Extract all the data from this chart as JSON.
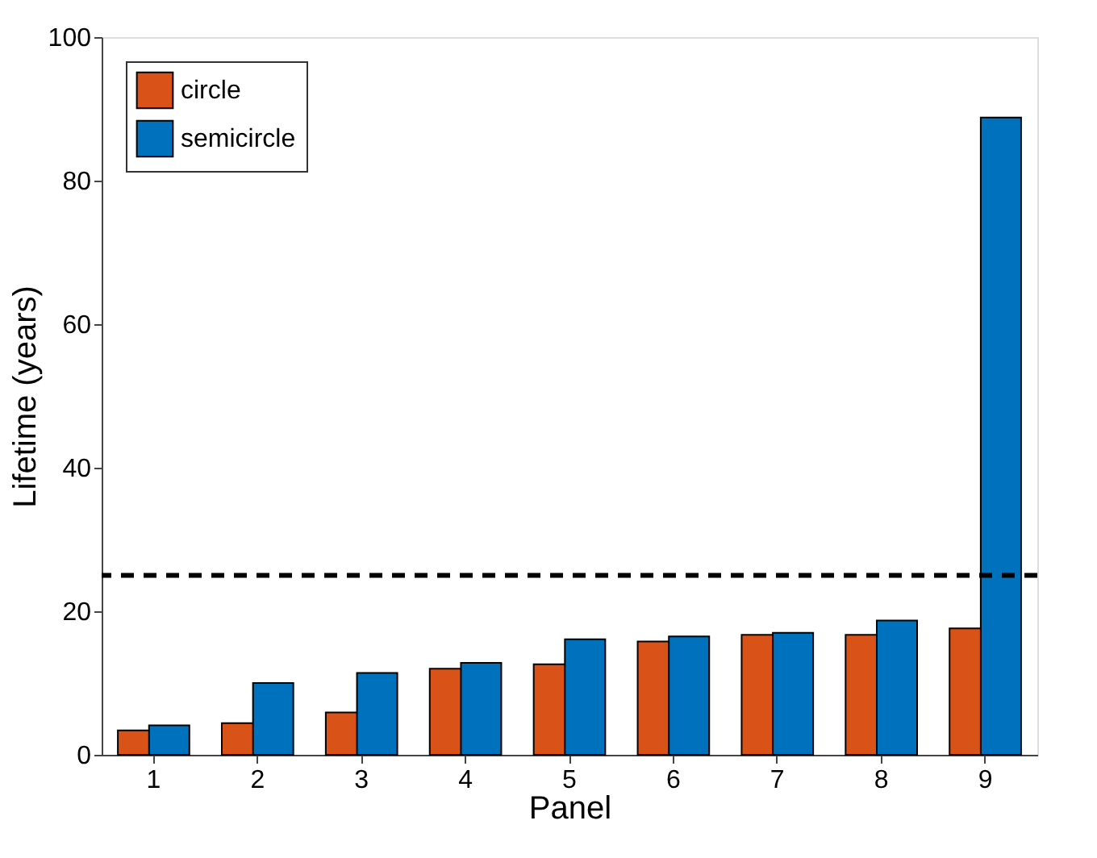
{
  "chart_data": {
    "type": "bar",
    "xlabel": "Panel",
    "ylabel": "Lifetime (years)",
    "categories": [
      "1",
      "2",
      "3",
      "4",
      "5",
      "6",
      "7",
      "8",
      "9"
    ],
    "series": [
      {
        "name": "circle",
        "color": "#d95319",
        "values": [
          3.4,
          4.4,
          5.9,
          12.0,
          12.6,
          15.8,
          16.7,
          16.7,
          17.6
        ]
      },
      {
        "name": "semicircle",
        "color": "#0072bd",
        "values": [
          4.1,
          10.0,
          11.4,
          12.8,
          16.1,
          16.5,
          17.0,
          18.7,
          88.8
        ]
      }
    ],
    "ylim": [
      0,
      100
    ],
    "yticks": [
      0,
      20,
      40,
      60,
      80,
      100
    ],
    "ref_lines": [
      {
        "axis": "y",
        "value": 25,
        "color": "#000000",
        "line_style": "dashed"
      }
    ],
    "legend": "top left",
    "grid": false
  }
}
